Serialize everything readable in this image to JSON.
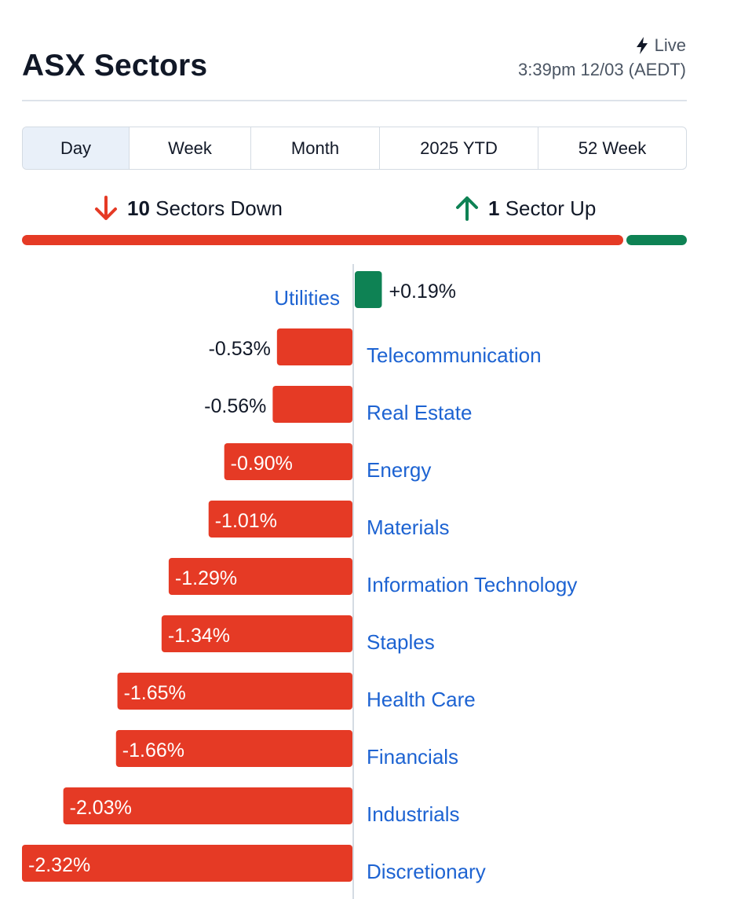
{
  "header": {
    "title": "ASX Sectors",
    "live_label": "Live",
    "timestamp": "3:39pm 12/03 (AEDT)"
  },
  "tabs": [
    {
      "label": "Day",
      "active": true
    },
    {
      "label": "Week",
      "active": false
    },
    {
      "label": "Month",
      "active": false
    },
    {
      "label": "2025 YTD",
      "active": false
    },
    {
      "label": "52 Week",
      "active": false
    }
  ],
  "summary": {
    "down_count": "10",
    "down_text": "Sectors Down",
    "up_count": "1",
    "up_text": "Sector Up"
  },
  "colors": {
    "down": "#e53a25",
    "up": "#0e8254",
    "link": "#1d63d2"
  },
  "chart_data": {
    "type": "bar",
    "orientation": "horizontal",
    "categories": [
      "Utilities",
      "Telecommunication",
      "Real Estate",
      "Energy",
      "Materials",
      "Information Technology",
      "Staples",
      "Health Care",
      "Financials",
      "Industrials",
      "Discretionary"
    ],
    "values": [
      0.19,
      -0.53,
      -0.56,
      -0.9,
      -1.01,
      -1.29,
      -1.34,
      -1.65,
      -1.66,
      -2.03,
      -2.32
    ],
    "value_labels": [
      "+0.19%",
      "-0.53%",
      "-0.56%",
      "-0.90%",
      "-1.01%",
      "-1.29%",
      "-1.34%",
      "-1.65%",
      "-1.66%",
      "-2.03%",
      "-2.32%"
    ],
    "unit": "%",
    "xlim": [
      -2.32,
      0.19
    ]
  }
}
